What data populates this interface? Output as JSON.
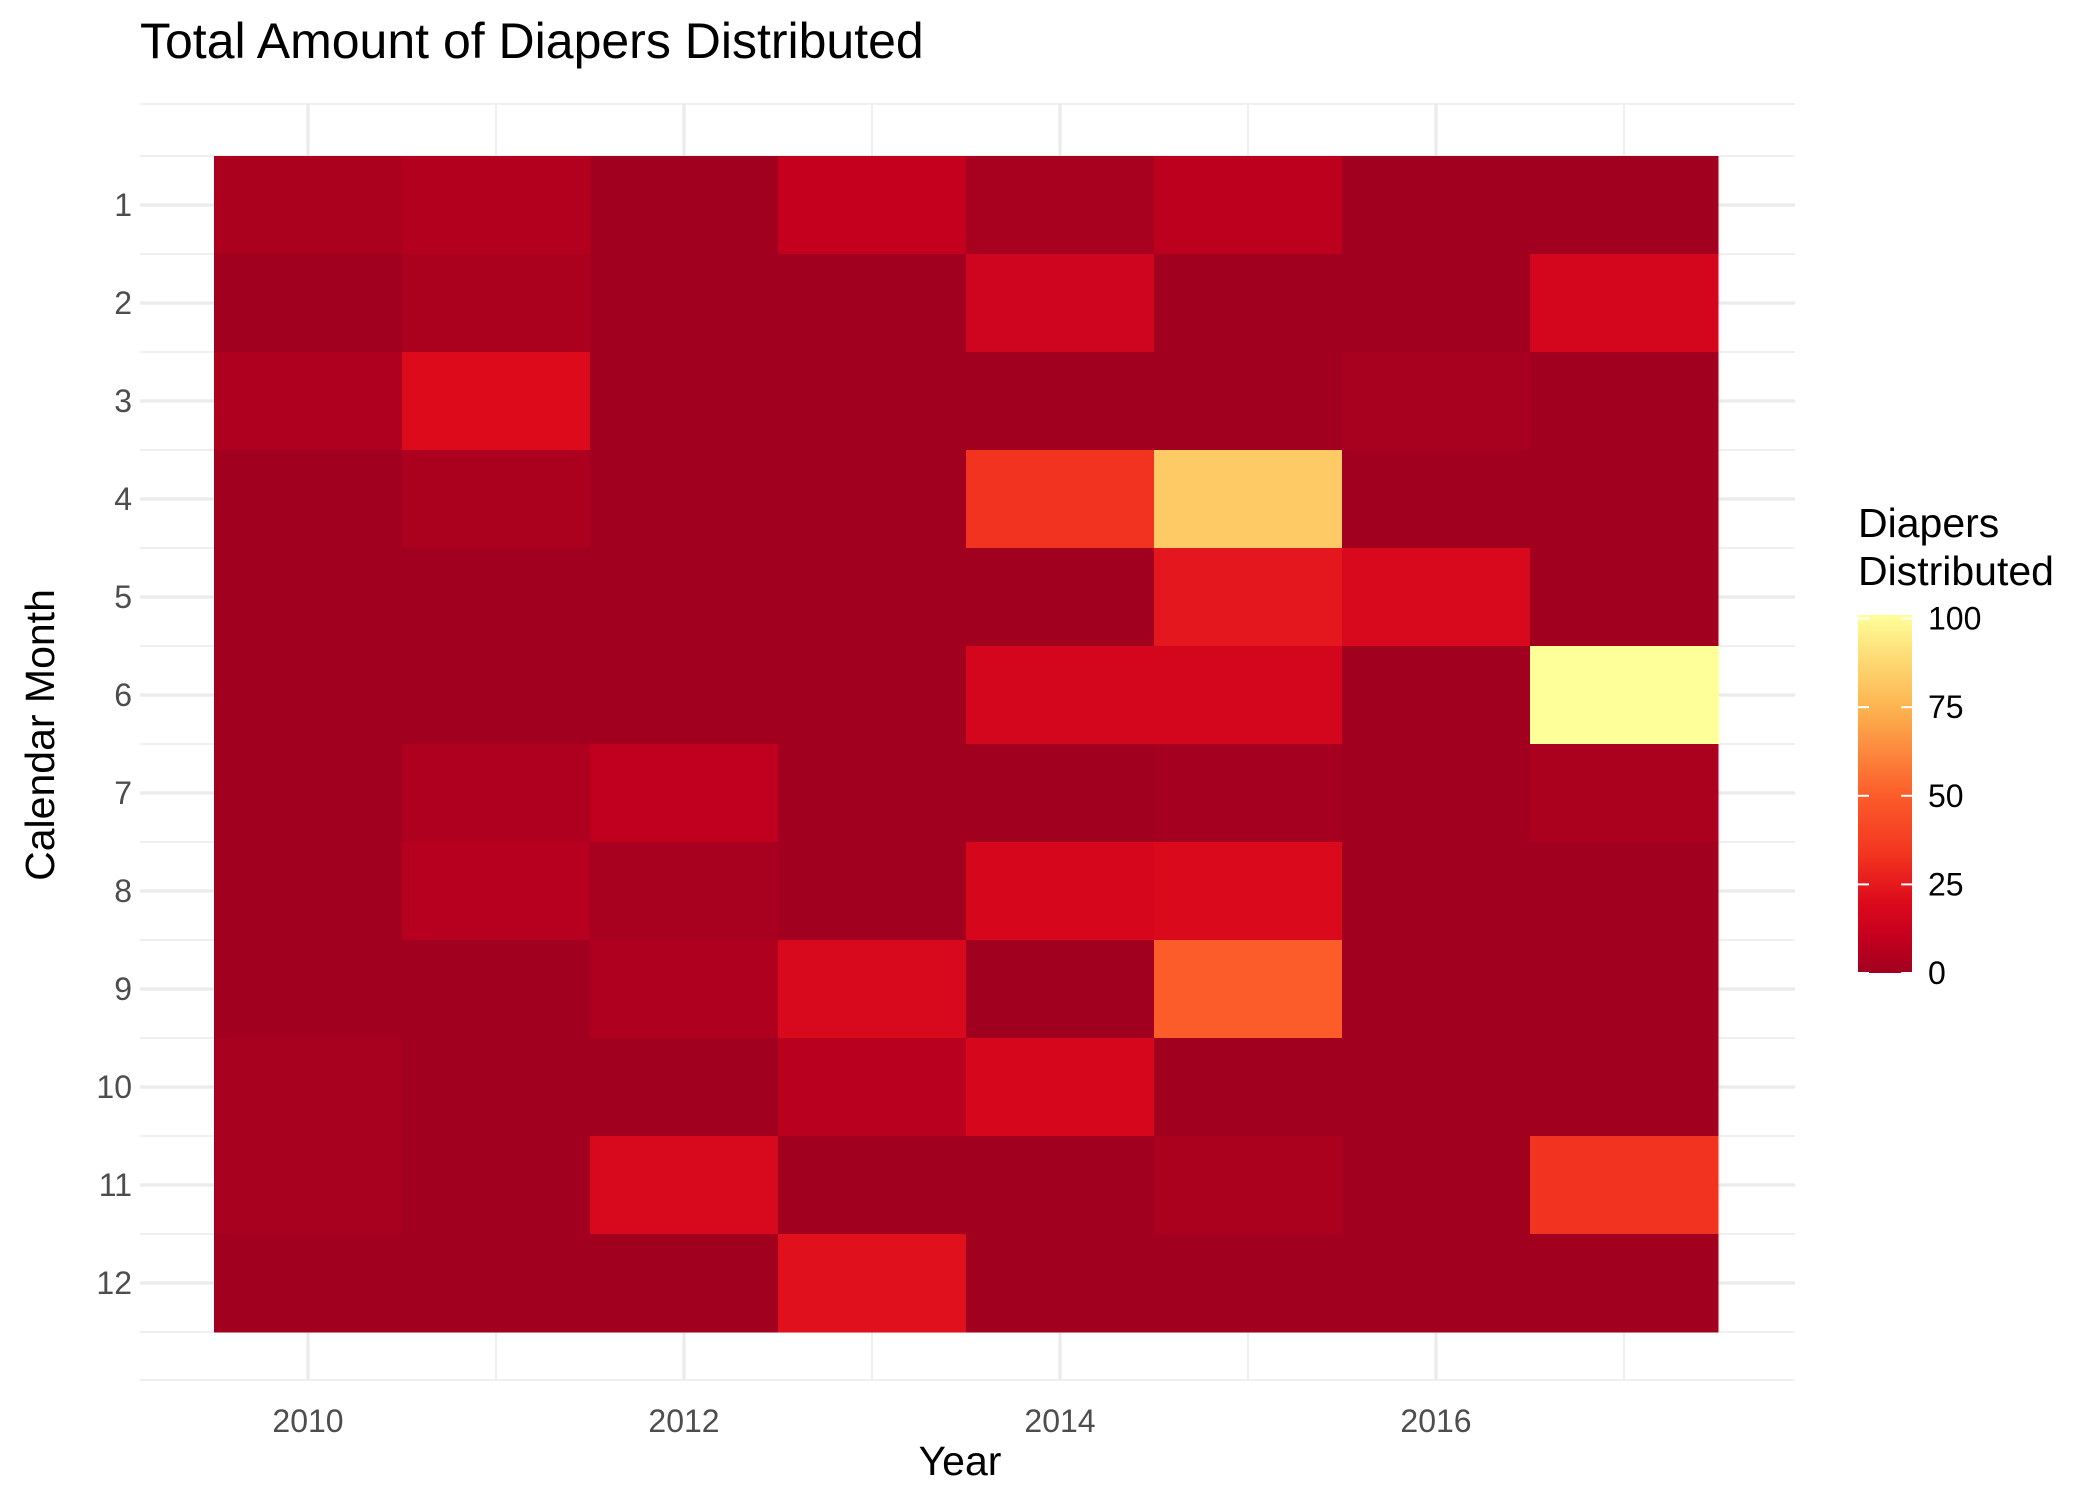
{
  "chart_data": {
    "type": "heatmap",
    "title": "Total Amount of Diapers Distributed",
    "xlabel": "Year",
    "ylabel": "Calendar Month",
    "x": [
      2010,
      2011,
      2012,
      2013,
      2014,
      2015,
      2016,
      2017
    ],
    "x_tick_labels": [
      "2010",
      "2012",
      "2014",
      "2016"
    ],
    "y": [
      1,
      2,
      3,
      4,
      5,
      6,
      7,
      8,
      9,
      10,
      11,
      12
    ],
    "y_tick_labels": [
      "1",
      "2",
      "3",
      "4",
      "5",
      "6",
      "7",
      "8",
      "9",
      "10",
      "11",
      "12"
    ],
    "values": [
      [
        3,
        5,
        0,
        10,
        2,
        8,
        0,
        0
      ],
      [
        0,
        3,
        0,
        0,
        14,
        0,
        0,
        16
      ],
      [
        4,
        20,
        0,
        0,
        0,
        0,
        2,
        0
      ],
      [
        0,
        3,
        0,
        0,
        33,
        83,
        0,
        0
      ],
      [
        0,
        0,
        0,
        0,
        0,
        24,
        18,
        0
      ],
      [
        0,
        0,
        0,
        0,
        16,
        16,
        0,
        101
      ],
      [
        0,
        4,
        9,
        0,
        0,
        1,
        0,
        3
      ],
      [
        0,
        6,
        2,
        0,
        17,
        19,
        0,
        0
      ],
      [
        0,
        0,
        4,
        18,
        0,
        50,
        0,
        0
      ],
      [
        2,
        0,
        0,
        7,
        17,
        0,
        0,
        0
      ],
      [
        2,
        0,
        18,
        0,
        0,
        3,
        0,
        33
      ],
      [
        0,
        0,
        0,
        22,
        0,
        0,
        0,
        0
      ]
    ],
    "xlim": [
      2009.5,
      2017.5
    ],
    "color_scale": {
      "stops": [
        {
          "value": 0,
          "color": "#a1001f"
        },
        {
          "value": 10,
          "color": "#c5001f"
        },
        {
          "value": 20,
          "color": "#dd0a1c"
        },
        {
          "value": 33,
          "color": "#f2331f"
        },
        {
          "value": 50,
          "color": "#fc5c2a"
        },
        {
          "value": 75,
          "color": "#fdb450"
        },
        {
          "value": 90,
          "color": "#fdde78"
        },
        {
          "value": 101,
          "color": "#ffff99"
        }
      ],
      "min": 0,
      "max": 101
    },
    "legend": {
      "title": [
        "Diapers",
        "Distributed"
      ],
      "ticks": [
        0,
        25,
        50,
        75,
        100
      ],
      "placement": "right"
    },
    "grid": true
  }
}
